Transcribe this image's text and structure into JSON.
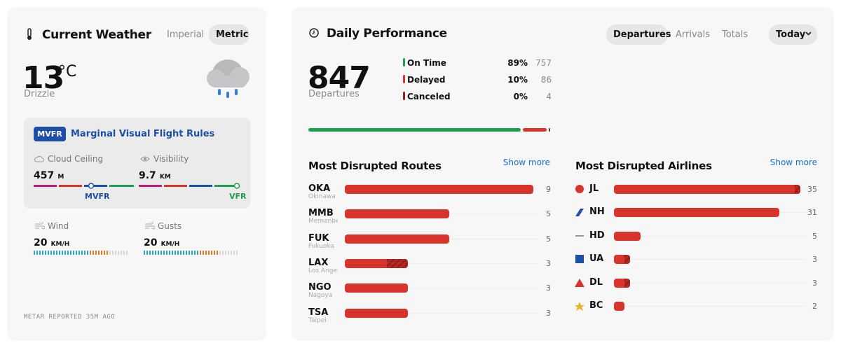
{
  "weather": {
    "title": "Current Weather",
    "units": [
      "Imperial",
      "Metric"
    ],
    "temperature": 13,
    "temperature_unit": "°C",
    "condition": "Drizzle",
    "flight_category": {
      "code": "MVFR",
      "label": "Marginal Visual Flight Rules"
    },
    "ceiling": {
      "label": "Cloud Ceiling",
      "value": 457,
      "unit": "M"
    },
    "visibility": {
      "label": "Visibility",
      "value": 9.7,
      "unit": "KM"
    },
    "ceiling_marker": "MVFR",
    "visibility_marker": "VFR",
    "wind": {
      "label": "Wind",
      "value": 20,
      "unit": "KM/H"
    },
    "gusts": {
      "label": "Gusts",
      "value": 20,
      "unit": "KM/H"
    },
    "footer": "METAR REPORTED 35M AGO"
  },
  "performance": {
    "title": "Daily Performance",
    "tabs": [
      "Departures",
      "Arrivals",
      "Totals"
    ],
    "period": "Today",
    "total": 847,
    "total_label": "Departures",
    "breakdown": [
      {
        "name": "On Time",
        "percent": "89%",
        "count": 757,
        "color": "#1e9e50"
      },
      {
        "name": "Delayed",
        "percent": "10%",
        "count": 86,
        "color": "#d9342b"
      },
      {
        "name": "Canceled",
        "percent": "0%",
        "count": 4,
        "color": "#9e1f1a"
      }
    ],
    "routes": {
      "title": "Most Disrupted Routes",
      "action": "Show more",
      "items": [
        {
          "code": "OKA",
          "city": "Okinawa",
          "count": 9,
          "delayed": 9,
          "canceled": 0
        },
        {
          "code": "MMB",
          "city": "Memanbetsu",
          "count": 5,
          "delayed": 5,
          "canceled": 0
        },
        {
          "code": "FUK",
          "city": "Fukuoka",
          "count": 5,
          "delayed": 5,
          "canceled": 0
        },
        {
          "code": "LAX",
          "city": "Los Angeles",
          "count": 3,
          "delayed": 2,
          "canceled": 1
        },
        {
          "code": "NGO",
          "city": "Nagoya",
          "count": 3,
          "delayed": 3,
          "canceled": 0
        },
        {
          "code": "TSA",
          "city": "Taipei",
          "count": 3,
          "delayed": 3,
          "canceled": 0
        }
      ]
    },
    "airlines": {
      "title": "Most Disrupted Airlines",
      "action": "Show more",
      "items": [
        {
          "code": "JL",
          "count": 35,
          "delayed": 34,
          "canceled": 1
        },
        {
          "code": "NH",
          "count": 31,
          "delayed": 31,
          "canceled": 0
        },
        {
          "code": "HD",
          "count": 5,
          "delayed": 5,
          "canceled": 0
        },
        {
          "code": "UA",
          "count": 3,
          "delayed": 2,
          "canceled": 1
        },
        {
          "code": "DL",
          "count": 3,
          "delayed": 2,
          "canceled": 1
        },
        {
          "code": "BC",
          "count": 2,
          "delayed": 2,
          "canceled": 0
        }
      ]
    }
  }
}
